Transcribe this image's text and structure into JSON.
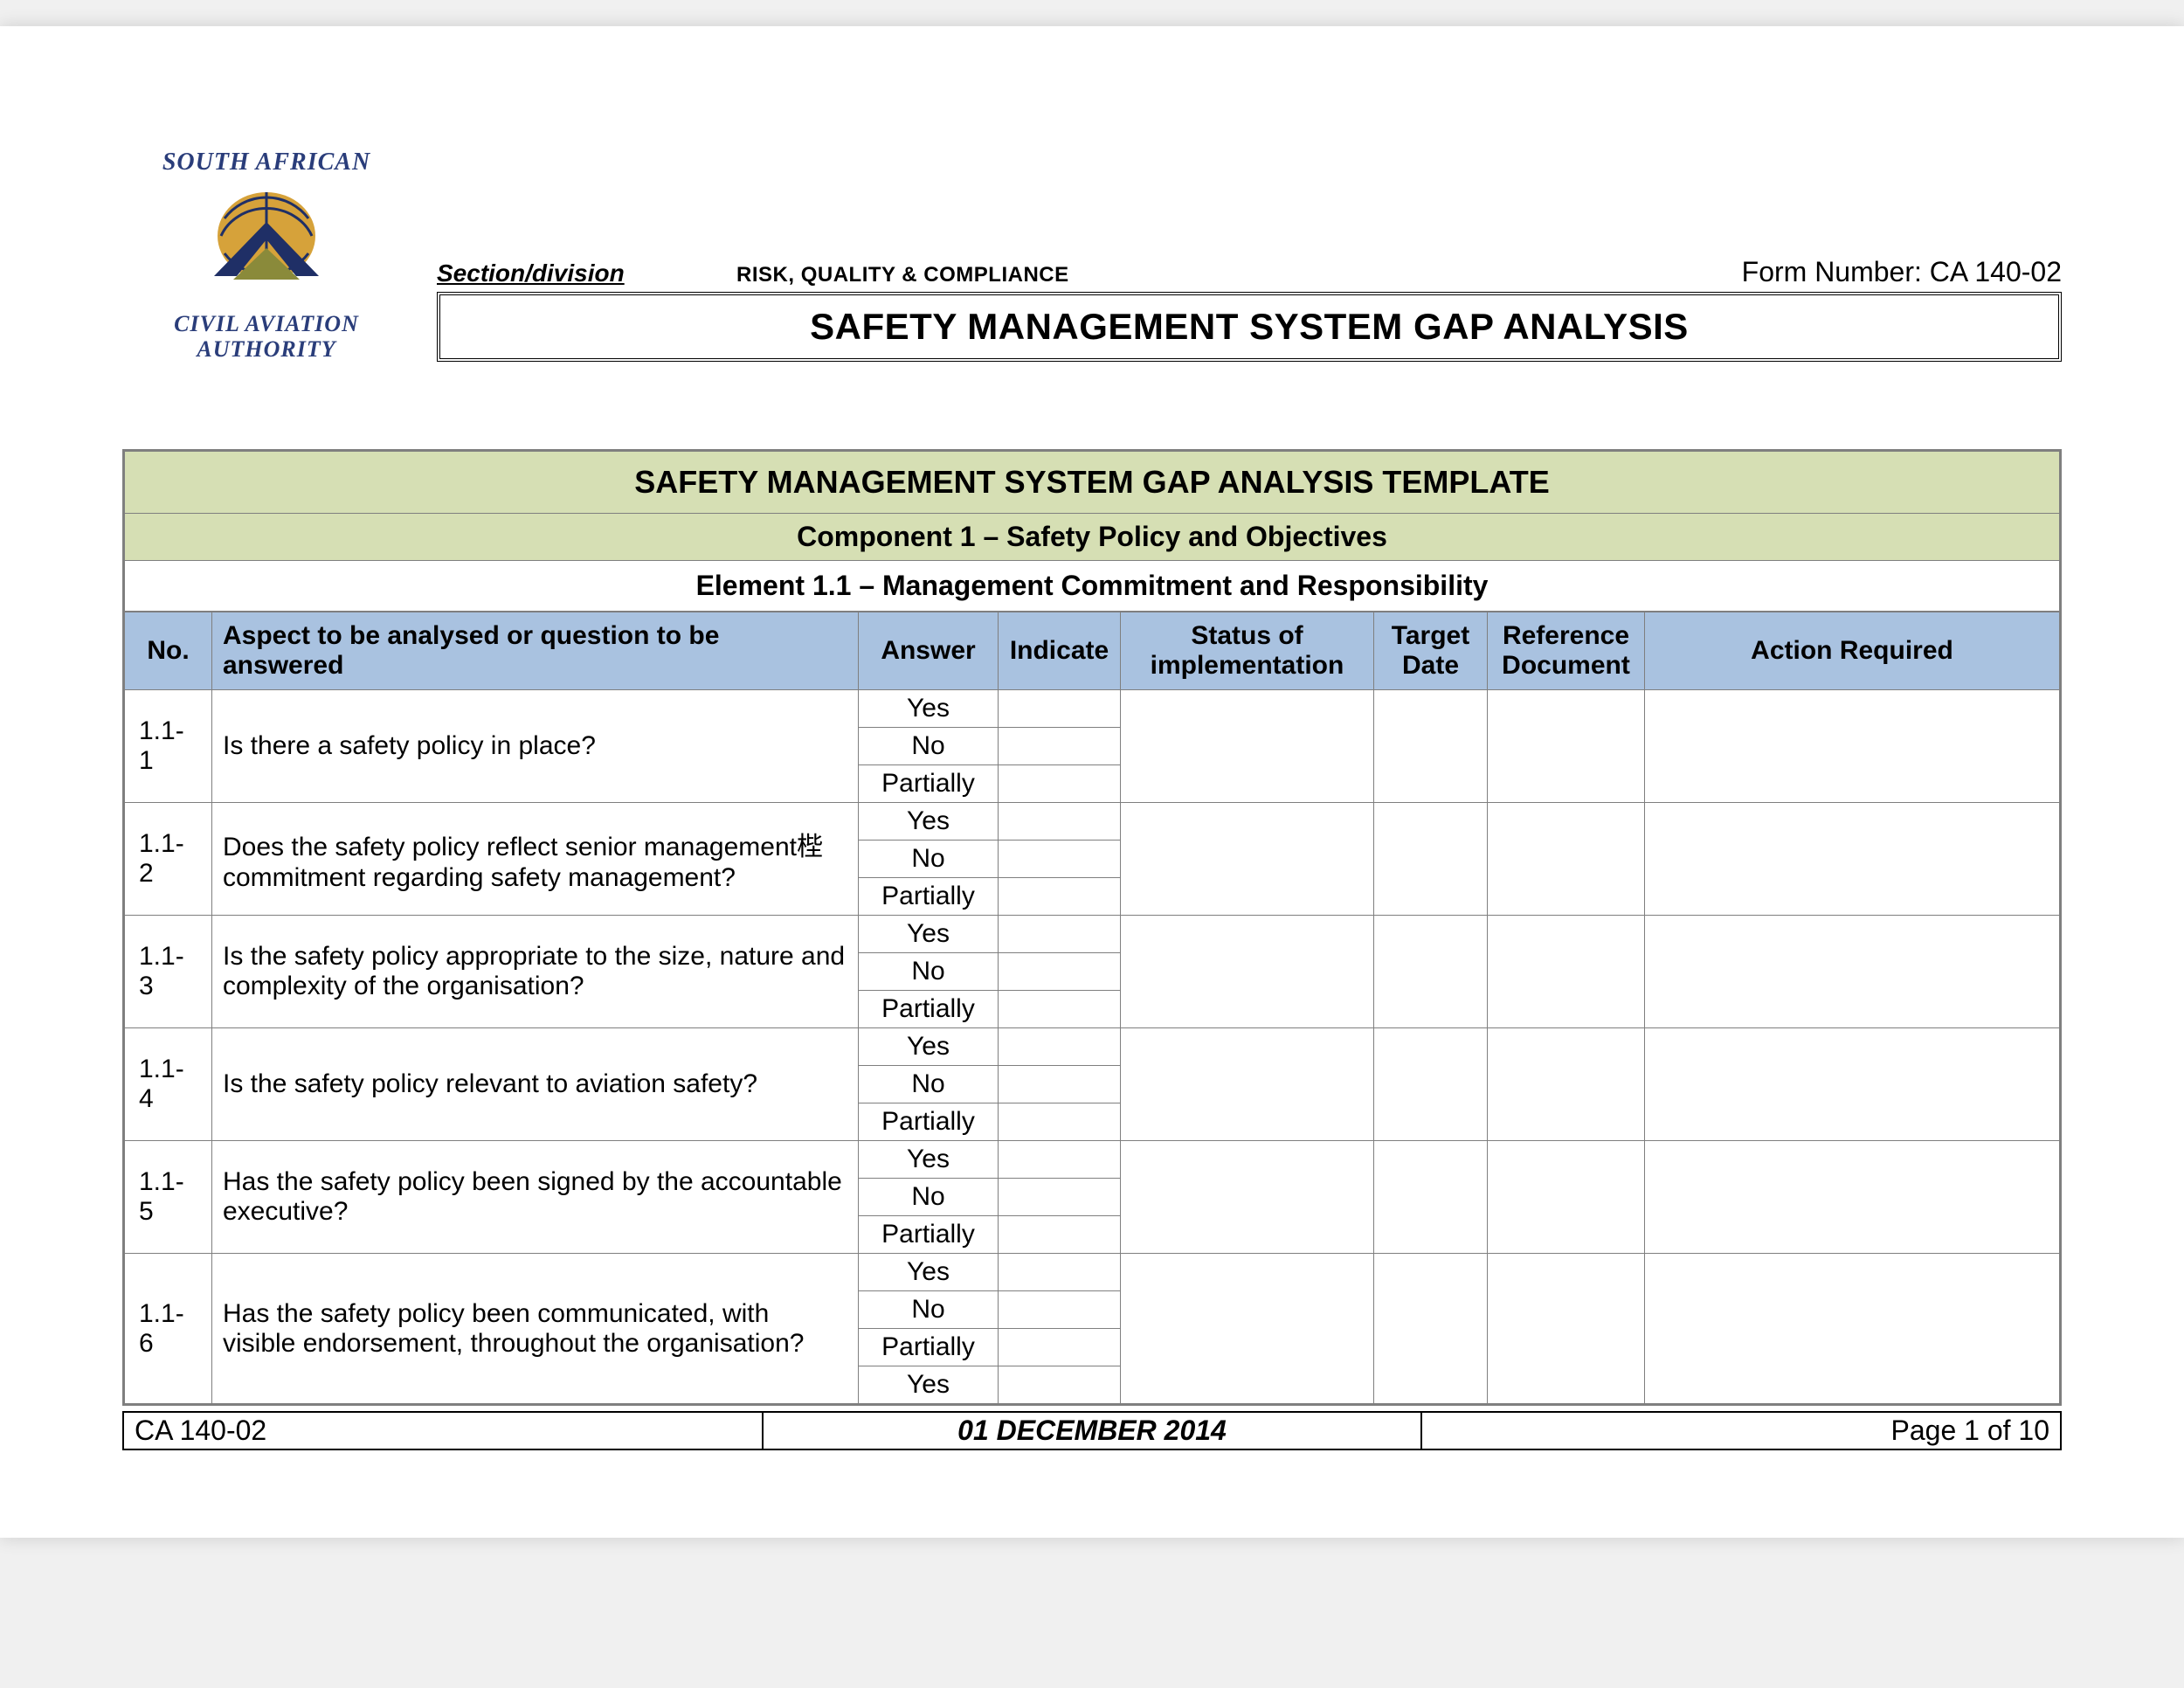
{
  "logo": {
    "top": "SOUTH AFRICAN",
    "bottom_line1": "CIVIL AVIATION",
    "bottom_line2": "AUTHORITY",
    "colors": {
      "navy": "#1f2f66",
      "gold": "#d6a23a",
      "olive": "#8a8a3a"
    }
  },
  "meta": {
    "section_label": "Section/division",
    "section_value": "RISK, QUALITY & COMPLIANCE",
    "form_number_label": "Form Number: CA 140-02"
  },
  "title": "SAFETY MANAGEMENT SYSTEM GAP ANALYSIS",
  "bands": {
    "template": "SAFETY MANAGEMENT SYSTEM GAP ANALYSIS TEMPLATE",
    "component": "Component 1 – Safety Policy and Objectives",
    "element": "Element 1.1 – Management Commitment and Responsibility"
  },
  "columns": {
    "no": "No.",
    "question": "Aspect to be analysed or question to be answered",
    "answer": "Answer",
    "indicate": "Indicate",
    "status": "Status of implementation",
    "target": "Target Date",
    "reference": "Reference Document",
    "action": "Action Required"
  },
  "answer_options": [
    "Yes",
    "No",
    "Partially"
  ],
  "rows": [
    {
      "no": "1.1-1",
      "q": "Is there a safety policy in place?",
      "opts": 3
    },
    {
      "no": "1.1-2",
      "q": "Does the safety policy reflect senior management梐 commitment regarding safety management?",
      "opts": 3
    },
    {
      "no": "1.1-3",
      "q": "Is the safety policy appropriate to the size, nature and complexity of the organisation?",
      "opts": 3
    },
    {
      "no": "1.1-4",
      "q": "Is the safety policy relevant to aviation safety?",
      "opts": 3
    },
    {
      "no": "1.1-5",
      "q": "Has the safety policy been signed by the accountable executive?",
      "opts": 3
    },
    {
      "no": "1.1-6",
      "q": "Has the safety policy been communicated, with visible endorsement, throughout the organisation?",
      "opts": 4
    }
  ],
  "footer": {
    "left": "CA 140-02",
    "center": "01 DECEMBER 2014",
    "right": "Page 1 of 10"
  }
}
